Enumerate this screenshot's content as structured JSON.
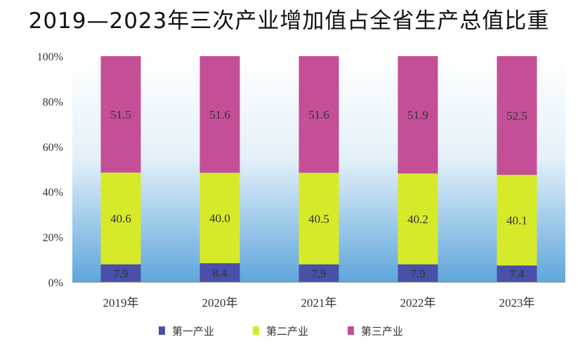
{
  "chart_data": {
    "type": "bar",
    "stacked": true,
    "percent": true,
    "title": "2019—2023年三次产业增加值占全省生产总值比重",
    "categories": [
      "2019年",
      "2020年",
      "2021年",
      "2022年",
      "2023年"
    ],
    "yticks": [
      "0%",
      "20%",
      "40%",
      "60%",
      "80%",
      "100%"
    ],
    "ylim": [
      0,
      100
    ],
    "series": [
      {
        "name": "第一产业",
        "values": [
          7.9,
          8.4,
          7.9,
          7.9,
          7.4
        ],
        "color": "#4a4fa8"
      },
      {
        "name": "第二产业",
        "values": [
          40.6,
          40.0,
          40.5,
          40.2,
          40.1
        ],
        "color": "#d6ea2a"
      },
      {
        "name": "第三产业",
        "values": [
          51.5,
          51.6,
          51.6,
          51.9,
          52.5
        ],
        "color": "#c44f96"
      }
    ],
    "labels": [
      [
        "7.9",
        "8.4",
        "7.9",
        "7.9",
        "7.4"
      ],
      [
        "40.6",
        "40.0",
        "40.5",
        "40.2",
        "40.1"
      ],
      [
        "51.5",
        "51.6",
        "51.6",
        "51.9",
        "52.5"
      ]
    ],
    "legend_position": "bottom",
    "grid": false
  }
}
